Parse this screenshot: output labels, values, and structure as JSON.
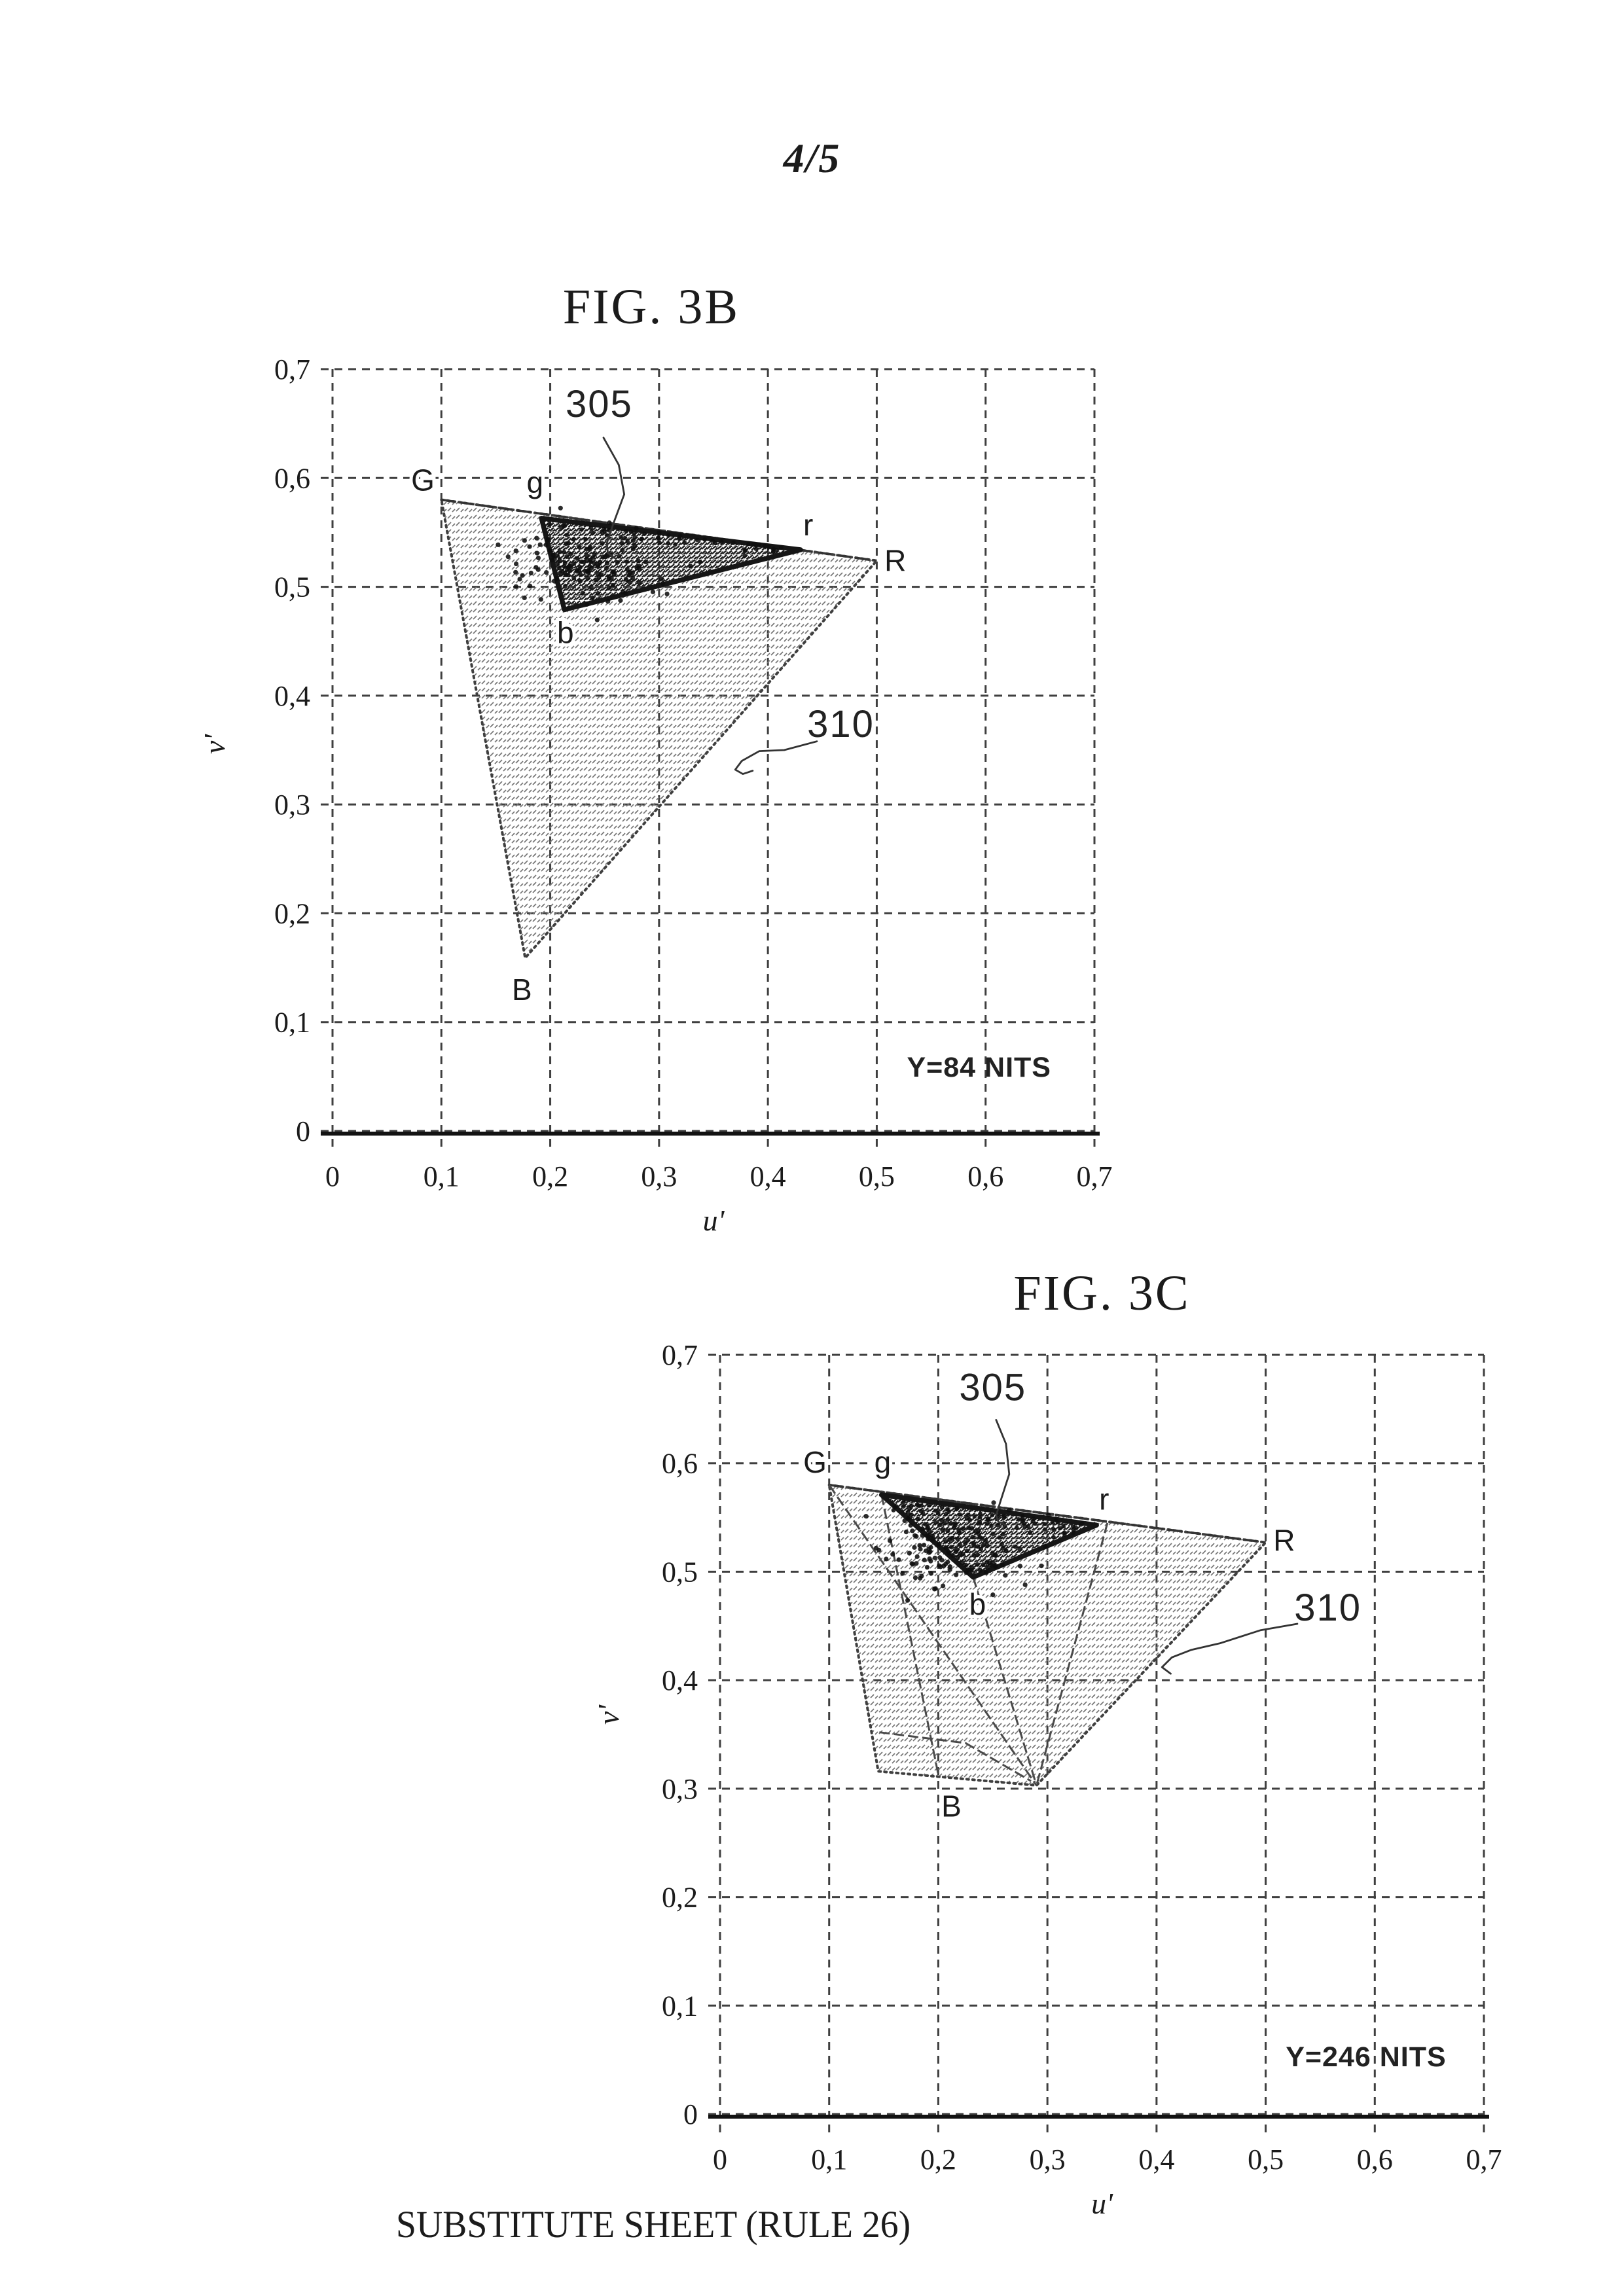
{
  "page": {
    "number": "4/5",
    "footer": "SUBSTITUTE SHEET (RULE 26)"
  },
  "colors": {
    "ink": "#1b1b1b",
    "grid": "#3f3f3f",
    "hatch_light": "#767676",
    "hatch_dark": "#1e1e1e",
    "scatter": "#0f0f0f",
    "paper": "#ffffff"
  },
  "chart_data": [
    {
      "type": "scatter",
      "title": "FIG. 3B",
      "xlabel": "u'",
      "ylabel": "v'",
      "xlim": [
        0,
        0.7
      ],
      "ylim": [
        0,
        0.7
      ],
      "grid": "dashed",
      "x_tick_labels": [
        "0",
        "0,1",
        "0,2",
        "0,3",
        "0,4",
        "0,5",
        "0,6",
        "0,7"
      ],
      "y_tick_labels": [
        "0",
        "0,1",
        "0,2",
        "0,3",
        "0,4",
        "0,5",
        "0,6",
        "0,7"
      ],
      "annotation": {
        "text": "Y=84 NITS",
        "pos": [
          0.594,
          0.05
        ]
      },
      "gamut_outer": {
        "ref": "310",
        "ref_pos": [
          0.467,
          0.362
        ],
        "outline": [
          [
            0.1,
            0.58
          ],
          [
            0.5,
            0.524
          ],
          [
            0.177,
            0.159
          ]
        ],
        "points": {
          "G": [
            0.1,
            0.58
          ],
          "R": [
            0.5,
            0.524
          ],
          "B": [
            0.177,
            0.159
          ]
        }
      },
      "gamut_inner": {
        "ref": "305",
        "ref_pos": [
          0.245,
          0.656
        ],
        "outline": [
          [
            0.192,
            0.563
          ],
          [
            0.43,
            0.534
          ],
          [
            0.213,
            0.479
          ]
        ],
        "points": {
          "g": [
            0.192,
            0.563
          ],
          "r": [
            0.43,
            0.534
          ],
          "b": [
            0.213,
            0.479
          ]
        }
      },
      "vertex_labels": [
        {
          "text": "G",
          "pos": [
            0.083,
            0.598
          ]
        },
        {
          "text": "g",
          "pos": [
            0.186,
            0.596
          ]
        },
        {
          "text": "r",
          "pos": [
            0.437,
            0.557
          ]
        },
        {
          "text": "R",
          "pos": [
            0.517,
            0.524
          ]
        },
        {
          "text": "b",
          "pos": [
            0.214,
            0.458
          ]
        },
        {
          "text": "B",
          "pos": [
            0.174,
            0.13
          ]
        }
      ],
      "leaders": [
        {
          "for": "305",
          "points": [
            [
              0.249,
              0.637
            ],
            [
              0.263,
              0.612
            ],
            [
              0.268,
              0.585
            ],
            [
              0.258,
              0.558
            ],
            [
              0.252,
              0.54
            ],
            [
              0.253,
              0.531
            ],
            [
              0.26,
              0.526
            ]
          ]
        },
        {
          "for": "310",
          "points": [
            [
              0.445,
              0.358
            ],
            [
              0.415,
              0.35
            ],
            [
              0.392,
              0.349
            ],
            [
              0.376,
              0.34
            ],
            [
              0.37,
              0.332
            ],
            [
              0.377,
              0.328
            ],
            [
              0.386,
              0.331
            ]
          ]
        }
      ],
      "extra_lines": [],
      "scatter_cluster": {
        "seed": 7,
        "count": 150,
        "center": [
          0.238,
          0.52
        ],
        "sigma": [
          0.033,
          0.016
        ],
        "edge_from": [
          0.197,
          0.559
        ],
        "edge_to": [
          0.415,
          0.537
        ],
        "edge_count": 55,
        "edge_jitter": 0.006
      }
    },
    {
      "type": "scatter",
      "title": "FIG. 3C",
      "xlabel": "u'",
      "ylabel": "v'",
      "xlim": [
        0,
        0.7
      ],
      "ylim": [
        0,
        0.7
      ],
      "grid": "dashed",
      "x_tick_labels": [
        "0",
        "0,1",
        "0,2",
        "0,3",
        "0,4",
        "0,5",
        "0,6",
        "0,7"
      ],
      "y_tick_labels": [
        "0",
        "0,1",
        "0,2",
        "0,3",
        "0,4",
        "0,5",
        "0,6",
        "0,7"
      ],
      "annotation": {
        "text": "Y=246 NITS",
        "pos": [
          0.592,
          0.044
        ]
      },
      "gamut_outer": {
        "ref": "310",
        "ref_pos": [
          0.557,
          0.455
        ],
        "outline": [
          [
            0.1,
            0.58
          ],
          [
            0.5,
            0.527
          ],
          [
            0.29,
            0.303
          ],
          [
            0.145,
            0.316
          ]
        ],
        "points": {
          "G": [
            0.1,
            0.58
          ],
          "R": [
            0.5,
            0.527
          ],
          "B": [
            0.29,
            0.303
          ]
        }
      },
      "gamut_inner": {
        "ref": "305",
        "ref_pos": [
          0.25,
          0.658
        ],
        "outline": [
          [
            0.148,
            0.571
          ],
          [
            0.345,
            0.543
          ],
          [
            0.232,
            0.495
          ]
        ],
        "points": {
          "g": [
            0.148,
            0.571
          ],
          "r": [
            0.345,
            0.543
          ],
          "b": [
            0.232,
            0.495
          ]
        }
      },
      "vertex_labels": [
        {
          "text": "G",
          "pos": [
            0.087,
            0.601
          ]
        },
        {
          "text": "g",
          "pos": [
            0.149,
            0.601
          ]
        },
        {
          "text": "r",
          "pos": [
            0.352,
            0.567
          ]
        },
        {
          "text": "R",
          "pos": [
            0.517,
            0.529
          ]
        },
        {
          "text": "b",
          "pos": [
            0.236,
            0.47
          ]
        },
        {
          "text": "B",
          "pos": [
            0.212,
            0.284
          ]
        }
      ],
      "leaders": [
        {
          "for": "305",
          "points": [
            [
              0.253,
              0.64
            ],
            [
              0.262,
              0.618
            ],
            [
              0.265,
              0.59
            ],
            [
              0.257,
              0.565
            ],
            [
              0.253,
              0.552
            ],
            [
              0.255,
              0.546
            ],
            [
              0.262,
              0.543
            ]
          ]
        },
        {
          "for": "310",
          "points": [
            [
              0.529,
              0.452
            ],
            [
              0.495,
              0.446
            ],
            [
              0.458,
              0.434
            ],
            [
              0.432,
              0.428
            ],
            [
              0.414,
              0.421
            ],
            [
              0.405,
              0.412
            ],
            [
              0.413,
              0.406
            ]
          ]
        }
      ],
      "extra_lines": [
        [
          [
            0.1,
            0.58
          ],
          [
            0.29,
            0.303
          ]
        ],
        [
          [
            0.148,
            0.571
          ],
          [
            0.2,
            0.313
          ]
        ],
        [
          [
            0.355,
            0.545
          ],
          [
            0.29,
            0.303
          ]
        ],
        [
          [
            0.232,
            0.495
          ],
          [
            0.29,
            0.303
          ]
        ],
        [
          [
            0.146,
            0.352
          ],
          [
            0.225,
            0.342
          ],
          [
            0.285,
            0.307
          ]
        ]
      ],
      "scatter_cluster": {
        "seed": 11,
        "count": 165,
        "center": [
          0.214,
          0.522
        ],
        "sigma": [
          0.03,
          0.017
        ],
        "edge_from": [
          0.157,
          0.566
        ],
        "edge_to": [
          0.332,
          0.545
        ],
        "edge_count": 62,
        "edge_jitter": 0.007
      }
    }
  ]
}
